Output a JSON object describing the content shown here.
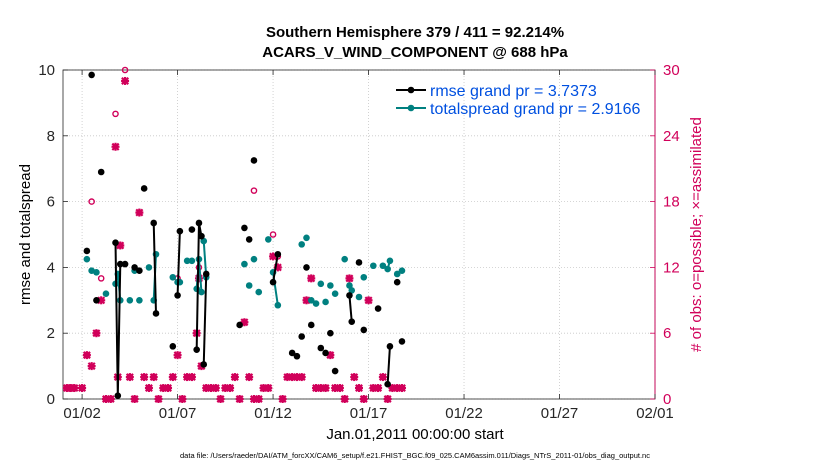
{
  "title_line1": "Southern Hemisphere 379 / 411 = 92.214%",
  "title_line2": "ACARS_V_WIND_COMPONENT @ 688 hPa",
  "footer": "data file: /Users/raeder/DAI/ATM_forcXX/CAM6_setup/f.e21.FHIST_BGC.f09_025.CAM6assim.011/Diags_NTrS_2011-01/obs_diag_output.nc",
  "colors": {
    "rmse": "#000000",
    "spread": "#008080",
    "obs": "#d1005a",
    "legend_text": "#0050e0"
  },
  "chart_data": {
    "type": "line",
    "xlabel": "Jan.01,2011 00:00:00 start",
    "ylabel": "rmse and totalspread",
    "y2label": "# of obs: o=possible; ×=assimilated",
    "xticks": [
      {
        "day": 1,
        "label": "01/02"
      },
      {
        "day": 6,
        "label": "01/07"
      },
      {
        "day": 11,
        "label": "01/12"
      },
      {
        "day": 16,
        "label": "01/17"
      },
      {
        "day": 21,
        "label": "01/22"
      },
      {
        "day": 26,
        "label": "01/27"
      },
      {
        "day": 31,
        "label": "02/01"
      }
    ],
    "xlim": [
      0,
      31
    ],
    "ylim": [
      0,
      10
    ],
    "y2lim": [
      0,
      30
    ],
    "yticks": [
      0,
      2,
      4,
      6,
      8,
      10
    ],
    "y2ticks": [
      0,
      6,
      12,
      18,
      24,
      30
    ],
    "grid": true,
    "legend_position": "top-right",
    "series": [
      {
        "name": "rmse grand pr = 3.7373",
        "axis": "left",
        "marker": "dot",
        "points": [
          [
            1.25,
            4.5
          ],
          [
            1.5,
            9.85
          ],
          [
            1.75,
            3.0
          ],
          [
            2.0,
            6.9
          ],
          [
            2.75,
            4.75,
            "a"
          ],
          [
            2.87,
            0.1,
            "a"
          ],
          [
            3.0,
            4.1,
            "a"
          ],
          [
            3.25,
            4.1
          ],
          [
            3.75,
            4.0
          ],
          [
            4.0,
            3.9
          ],
          [
            4.25,
            6.4
          ],
          [
            4.75,
            5.35,
            "b"
          ],
          [
            4.87,
            2.6,
            "b"
          ],
          [
            5.75,
            1.6
          ],
          [
            6.0,
            3.15,
            "c"
          ],
          [
            6.12,
            5.1,
            "c"
          ],
          [
            6.75,
            5.15
          ],
          [
            7.0,
            1.5,
            "d"
          ],
          [
            7.12,
            5.35,
            "d"
          ],
          [
            7.25,
            4.95,
            "d"
          ],
          [
            7.37,
            1.05,
            "e"
          ],
          [
            7.5,
            3.8,
            "e"
          ],
          [
            9.25,
            2.25
          ],
          [
            9.5,
            5.2
          ],
          [
            9.75,
            4.85
          ],
          [
            10.0,
            7.25
          ],
          [
            11.0,
            3.55,
            "f"
          ],
          [
            11.25,
            4.4,
            "f"
          ],
          [
            12.0,
            1.4
          ],
          [
            12.25,
            1.3
          ],
          [
            12.5,
            1.9
          ],
          [
            12.75,
            4.0
          ],
          [
            13.0,
            2.25
          ],
          [
            13.5,
            1.55
          ],
          [
            13.75,
            1.4
          ],
          [
            14.0,
            2.0
          ],
          [
            14.25,
            0.85
          ],
          [
            15.0,
            3.15,
            "g"
          ],
          [
            15.12,
            2.35,
            "g"
          ],
          [
            15.5,
            4.15
          ],
          [
            15.75,
            2.1
          ],
          [
            16.5,
            2.75
          ],
          [
            17.0,
            0.45,
            "h"
          ],
          [
            17.12,
            1.6,
            "h"
          ],
          [
            17.5,
            3.55
          ],
          [
            17.75,
            1.75
          ]
        ]
      },
      {
        "name": "totalspread grand pr = 2.9166",
        "axis": "left",
        "marker": "dot",
        "points": [
          [
            1.25,
            4.25
          ],
          [
            1.5,
            3.9
          ],
          [
            1.75,
            3.85
          ],
          [
            2.25,
            3.2
          ],
          [
            2.75,
            3.5,
            "a"
          ],
          [
            2.87,
            3.8,
            "a"
          ],
          [
            3.0,
            3.0,
            "a"
          ],
          [
            3.5,
            3.0
          ],
          [
            3.75,
            3.9
          ],
          [
            4.0,
            3.0
          ],
          [
            4.5,
            4.0
          ],
          [
            4.75,
            3.0,
            "b"
          ],
          [
            4.87,
            4.4,
            "b"
          ],
          [
            5.75,
            3.7
          ],
          [
            6.0,
            3.55,
            "c"
          ],
          [
            6.12,
            3.55,
            "c"
          ],
          [
            6.5,
            4.2
          ],
          [
            6.75,
            4.2
          ],
          [
            7.0,
            3.35,
            "d"
          ],
          [
            7.12,
            4.25,
            "d"
          ],
          [
            7.25,
            3.25,
            "d"
          ],
          [
            7.37,
            4.8,
            "e"
          ],
          [
            7.5,
            3.7,
            "e"
          ],
          [
            9.5,
            4.1
          ],
          [
            9.75,
            3.45
          ],
          [
            10.0,
            4.25
          ],
          [
            10.25,
            3.25
          ],
          [
            10.75,
            4.85
          ],
          [
            11.0,
            3.85,
            "f"
          ],
          [
            11.25,
            2.85,
            "f"
          ],
          [
            12.5,
            4.7
          ],
          [
            12.75,
            4.9
          ],
          [
            13.0,
            3.0
          ],
          [
            13.25,
            2.9
          ],
          [
            13.5,
            3.5
          ],
          [
            13.75,
            2.95
          ],
          [
            14.0,
            3.45
          ],
          [
            14.25,
            3.2
          ],
          [
            14.75,
            4.25
          ],
          [
            15.0,
            3.45,
            "g"
          ],
          [
            15.12,
            3.3,
            "g"
          ],
          [
            15.5,
            3.1
          ],
          [
            15.75,
            3.7
          ],
          [
            16.25,
            4.05
          ],
          [
            16.75,
            4.05
          ],
          [
            17.0,
            3.95,
            "h"
          ],
          [
            17.12,
            4.2,
            "h"
          ],
          [
            17.5,
            3.8
          ],
          [
            17.75,
            3.9
          ]
        ]
      },
      {
        "name": "possible",
        "axis": "right",
        "marker": "circle",
        "values": [
          [
            0.2,
            1
          ],
          [
            0.4,
            1
          ],
          [
            0.6,
            1
          ],
          [
            1.0,
            1
          ],
          [
            1.25,
            4
          ],
          [
            1.5,
            18
          ],
          [
            1.75,
            6
          ],
          [
            2.0,
            11
          ],
          [
            2.25,
            0
          ],
          [
            2.5,
            0
          ],
          [
            2.75,
            26
          ],
          [
            2.87,
            2
          ],
          [
            3.0,
            14
          ],
          [
            3.25,
            30
          ],
          [
            3.5,
            2
          ],
          [
            3.75,
            0
          ],
          [
            4.0,
            17
          ],
          [
            4.25,
            2
          ],
          [
            4.5,
            1
          ],
          [
            4.75,
            2
          ],
          [
            5.0,
            0
          ],
          [
            5.25,
            1
          ],
          [
            5.5,
            1
          ],
          [
            5.75,
            2
          ],
          [
            6.0,
            11
          ],
          [
            6.25,
            0
          ],
          [
            6.5,
            2
          ],
          [
            6.75,
            2
          ],
          [
            7.0,
            6
          ],
          [
            7.12,
            12
          ],
          [
            7.25,
            3
          ],
          [
            7.5,
            1
          ],
          [
            7.75,
            1
          ],
          [
            8.0,
            1
          ],
          [
            8.25,
            0
          ],
          [
            8.5,
            1
          ],
          [
            8.75,
            1
          ],
          [
            9.0,
            2
          ],
          [
            9.25,
            0
          ],
          [
            9.5,
            7
          ],
          [
            9.75,
            2
          ],
          [
            10.0,
            19
          ],
          [
            10.25,
            0
          ],
          [
            10.5,
            1
          ],
          [
            10.75,
            1
          ],
          [
            11.0,
            15
          ],
          [
            11.25,
            13
          ],
          [
            11.5,
            0
          ],
          [
            11.75,
            2
          ],
          [
            12.0,
            2
          ],
          [
            12.25,
            2
          ],
          [
            12.5,
            2
          ],
          [
            12.75,
            9
          ],
          [
            13.0,
            11
          ],
          [
            13.25,
            1
          ],
          [
            13.5,
            1
          ],
          [
            13.75,
            1
          ],
          [
            14.0,
            4
          ],
          [
            14.25,
            1
          ],
          [
            14.5,
            1
          ],
          [
            14.75,
            0
          ],
          [
            15.0,
            11
          ],
          [
            15.25,
            2
          ],
          [
            15.5,
            1
          ],
          [
            15.75,
            0
          ],
          [
            16.0,
            9
          ],
          [
            16.25,
            1
          ],
          [
            16.5,
            1
          ],
          [
            16.75,
            2
          ],
          [
            17.0,
            0
          ],
          [
            17.25,
            1
          ],
          [
            17.5,
            1
          ],
          [
            17.75,
            1
          ]
        ]
      },
      {
        "name": "assimilated",
        "axis": "right",
        "marker": "cross",
        "values": [
          [
            0.2,
            1
          ],
          [
            0.4,
            1
          ],
          [
            0.6,
            1
          ],
          [
            1.0,
            1
          ],
          [
            1.25,
            4
          ],
          [
            1.5,
            3
          ],
          [
            1.75,
            6
          ],
          [
            2.0,
            9
          ],
          [
            2.25,
            0
          ],
          [
            2.5,
            0
          ],
          [
            2.75,
            23
          ],
          [
            2.87,
            2
          ],
          [
            3.0,
            14
          ],
          [
            3.25,
            29
          ],
          [
            3.5,
            2
          ],
          [
            3.75,
            0
          ],
          [
            4.0,
            17
          ],
          [
            4.25,
            2
          ],
          [
            4.5,
            1
          ],
          [
            4.75,
            2
          ],
          [
            5.0,
            0
          ],
          [
            5.25,
            1
          ],
          [
            5.5,
            1
          ],
          [
            5.75,
            2
          ],
          [
            6.0,
            4
          ],
          [
            6.25,
            0
          ],
          [
            6.5,
            2
          ],
          [
            6.75,
            2
          ],
          [
            7.0,
            6
          ],
          [
            7.12,
            11
          ],
          [
            7.25,
            3
          ],
          [
            7.5,
            1
          ],
          [
            7.75,
            1
          ],
          [
            8.0,
            1
          ],
          [
            8.25,
            0
          ],
          [
            8.5,
            1
          ],
          [
            8.75,
            1
          ],
          [
            9.0,
            2
          ],
          [
            9.25,
            0
          ],
          [
            9.5,
            7
          ],
          [
            9.75,
            2
          ],
          [
            10.0,
            0
          ],
          [
            10.25,
            0
          ],
          [
            10.5,
            1
          ],
          [
            10.75,
            1
          ],
          [
            11.0,
            13
          ],
          [
            11.25,
            12
          ],
          [
            11.5,
            0
          ],
          [
            11.75,
            2
          ],
          [
            12.0,
            2
          ],
          [
            12.25,
            2
          ],
          [
            12.5,
            2
          ],
          [
            12.75,
            9
          ],
          [
            13.0,
            11
          ],
          [
            13.25,
            1
          ],
          [
            13.5,
            1
          ],
          [
            13.75,
            1
          ],
          [
            14.0,
            4
          ],
          [
            14.25,
            1
          ],
          [
            14.5,
            1
          ],
          [
            14.75,
            0
          ],
          [
            15.0,
            11
          ],
          [
            15.25,
            2
          ],
          [
            15.5,
            1
          ],
          [
            15.75,
            0
          ],
          [
            16.0,
            9
          ],
          [
            16.25,
            1
          ],
          [
            16.5,
            1
          ],
          [
            16.75,
            2
          ],
          [
            17.0,
            0
          ],
          [
            17.25,
            1
          ],
          [
            17.5,
            1
          ],
          [
            17.75,
            1
          ]
        ]
      }
    ],
    "legend": [
      {
        "label": "rmse grand pr = 3.7373",
        "series": 0
      },
      {
        "label": "totalspread grand pr = 2.9166",
        "series": 1
      }
    ]
  }
}
